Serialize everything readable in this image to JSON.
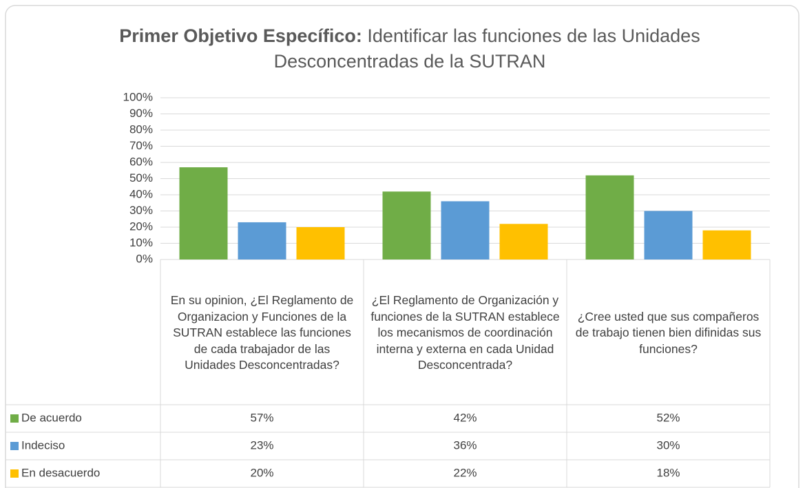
{
  "chart_data": {
    "type": "bar",
    "title": [
      "Primer Objetivo Específico:",
      "Identificar las funciones de las Unidades Desconcentradas de la SUTRAN"
    ],
    "categories": [
      "En su opinion, ¿El Reglamento de Organizacion y Funciones de la SUTRAN establece las funciones de cada trabajador de las Unidades Desconcentradas?",
      "¿El Reglamento de Organización y funciones de la SUTRAN establece los mecanismos de coordinación interna y externa en cada Unidad Desconcentrada?",
      "¿Cree usted que sus compañeros de trabajo tienen bien difinidas sus funciones?"
    ],
    "series": [
      {
        "name": "De acuerdo",
        "color": "#70ad47",
        "values": [
          57,
          42,
          52
        ],
        "value_labels": [
          "57%",
          "42%",
          "52%"
        ]
      },
      {
        "name": "Indeciso",
        "color": "#5b9bd5",
        "values": [
          23,
          36,
          30
        ],
        "value_labels": [
          "23%",
          "36%",
          "30%"
        ]
      },
      {
        "name": "En desacuerdo",
        "color": "#ffc000",
        "values": [
          20,
          22,
          18
        ],
        "value_labels": [
          "20%",
          "22%",
          "18%"
        ]
      }
    ],
    "ylim": [
      0,
      100
    ],
    "yticks": [
      {
        "value": 0,
        "label": "0%"
      },
      {
        "value": 10,
        "label": "10%"
      },
      {
        "value": 20,
        "label": "20%"
      },
      {
        "value": 30,
        "label": "30%"
      },
      {
        "value": 40,
        "label": "40%"
      },
      {
        "value": 50,
        "label": "50%"
      },
      {
        "value": 60,
        "label": "60%"
      },
      {
        "value": 70,
        "label": "70%"
      },
      {
        "value": 80,
        "label": "80%"
      },
      {
        "value": 90,
        "label": "90%"
      },
      {
        "value": 100,
        "label": "100%"
      }
    ],
    "grid": true
  }
}
